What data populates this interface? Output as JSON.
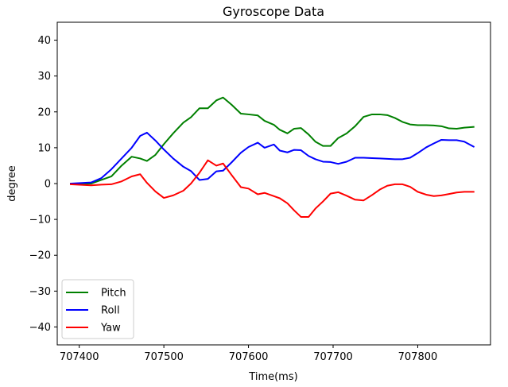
{
  "chart_data": {
    "type": "line",
    "title": "Gyroscope Data",
    "xlabel": "Time(ms)",
    "ylabel": "degree",
    "xlim": [
      707374,
      707886
    ],
    "ylim": [
      -45,
      45
    ],
    "xticks": [
      707400,
      707500,
      707600,
      707700,
      707800
    ],
    "xtick_labels": [
      "707400",
      "707500",
      "707600",
      "707700",
      "707800"
    ],
    "yticks": [
      -40,
      -30,
      -20,
      -10,
      0,
      10,
      20,
      30,
      40
    ],
    "ytick_labels": [
      "−40",
      "−30",
      "−20",
      "−10",
      "0",
      "10",
      "20",
      "30",
      "40"
    ],
    "grid": false,
    "legend_position": "lower-left",
    "series": [
      {
        "name": "Pitch",
        "color": "#008000",
        "x": [
          707390,
          707414,
          707426,
          707438,
          707450,
          707462,
          707472,
          707480,
          707490,
          707500,
          707511,
          707523,
          707532,
          707542,
          707552,
          707562,
          707570,
          707580,
          707591,
          707600,
          707611,
          707619,
          707630,
          707637,
          707646,
          707654,
          707662,
          707671,
          707679,
          707688,
          707697,
          707706,
          707716,
          707726,
          707736,
          707746,
          707755,
          707764,
          707773,
          707782,
          707791,
          707800,
          707810,
          707819,
          707828,
          707837,
          707846,
          707855,
          707866
        ],
        "y": [
          0,
          0,
          1,
          2,
          5,
          7.5,
          7,
          6.3,
          8,
          11,
          14,
          17,
          18.5,
          21,
          21,
          23.2,
          24,
          22,
          19.5,
          19.3,
          19,
          17.5,
          16.4,
          15,
          14,
          15.3,
          15.5,
          13.7,
          11.7,
          10.5,
          10.5,
          12.7,
          14,
          16,
          18.6,
          19.3,
          19.3,
          19.1,
          18.3,
          17.2,
          16.5,
          16.3,
          16.3,
          16.2,
          16,
          15.4,
          15.3,
          15.6,
          15.8
        ]
      },
      {
        "name": "Roll",
        "color": "#0000ff",
        "x": [
          707390,
          707414,
          707426,
          707438,
          707450,
          707462,
          707472,
          707480,
          707490,
          707500,
          707511,
          707523,
          707532,
          707542,
          707552,
          707562,
          707570,
          707580,
          707591,
          707600,
          707611,
          707619,
          707630,
          707637,
          707646,
          707654,
          707662,
          707671,
          707679,
          707688,
          707697,
          707706,
          707716,
          707726,
          707736,
          707746,
          707755,
          707764,
          707773,
          707782,
          707791,
          707800,
          707810,
          707819,
          707828,
          707837,
          707846,
          707855,
          707866
        ],
        "y": [
          0,
          0.3,
          1.5,
          4,
          7,
          10,
          13.3,
          14.2,
          12,
          9.5,
          7,
          4.7,
          3.5,
          1,
          1.3,
          3.4,
          3.6,
          5.9,
          8.6,
          10.2,
          11.4,
          10,
          10.9,
          9.2,
          8.7,
          9.4,
          9.3,
          7.7,
          6.8,
          6.1,
          6,
          5.5,
          6.1,
          7.2,
          7.2,
          7.1,
          7,
          6.9,
          6.8,
          6.8,
          7.2,
          8.5,
          10.1,
          11.2,
          12.2,
          12.1,
          12.1,
          11.7,
          10.3
        ]
      },
      {
        "name": "Yaw",
        "color": "#ff0000",
        "x": [
          707390,
          707414,
          707426,
          707438,
          707450,
          707462,
          707472,
          707480,
          707490,
          707500,
          707511,
          707523,
          707532,
          707542,
          707552,
          707562,
          707570,
          707580,
          707591,
          707600,
          707611,
          707619,
          707630,
          707637,
          707646,
          707654,
          707662,
          707671,
          707679,
          707688,
          707697,
          707706,
          707716,
          707726,
          707736,
          707746,
          707755,
          707764,
          707773,
          707782,
          707791,
          707800,
          707810,
          707819,
          707828,
          707837,
          707846,
          707855,
          707866
        ],
        "y": [
          -0.2,
          -0.5,
          -0.3,
          -0.2,
          0.6,
          2,
          2.6,
          0.2,
          -2.2,
          -4,
          -3.3,
          -2,
          0,
          3,
          6.5,
          5,
          5.6,
          2.4,
          -1,
          -1.4,
          -3,
          -2.6,
          -3.5,
          -4.1,
          -5.5,
          -7.5,
          -9.3,
          -9.3,
          -7,
          -5,
          -2.8,
          -2.4,
          -3.4,
          -4.5,
          -4.7,
          -3.2,
          -1.7,
          -0.6,
          -0.2,
          -0.2,
          -0.9,
          -2.3,
          -3.1,
          -3.5,
          -3.3,
          -2.9,
          -2.5,
          -2.3,
          -2.3
        ]
      }
    ]
  }
}
